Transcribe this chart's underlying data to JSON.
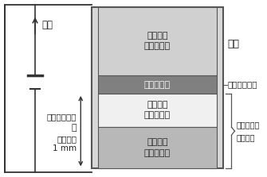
{
  "fig_width": 3.35,
  "fig_height": 2.23,
  "dpi": 100,
  "bg_color": "#ffffff",
  "layers": [
    {
      "label": "強磁性体\n（多結晶）",
      "color": "#d0d0d0",
      "text_color": "#222222"
    },
    {
      "label": "酸化アルミ",
      "color": "#808080",
      "text_color": "#ffffff"
    },
    {
      "label": "非磁性体\n（単結晶）",
      "color": "#f0f0f0",
      "text_color": "#222222"
    },
    {
      "label": "強磁性体\n（単結晶）",
      "color": "#b8b8b8",
      "text_color": "#222222"
    }
  ],
  "right_label_electrode": "電極",
  "right_label_tunnel": "トンネル障壁",
  "right_label_nano1": "単結晶ナノ",
  "right_label_nano2": "構造電極",
  "arrow_label": "電流",
  "left_nano": "ナノメートル",
  "left_eq": "＜＝",
  "left_hyaku": "百万分の",
  "left_mm": "1 mm"
}
